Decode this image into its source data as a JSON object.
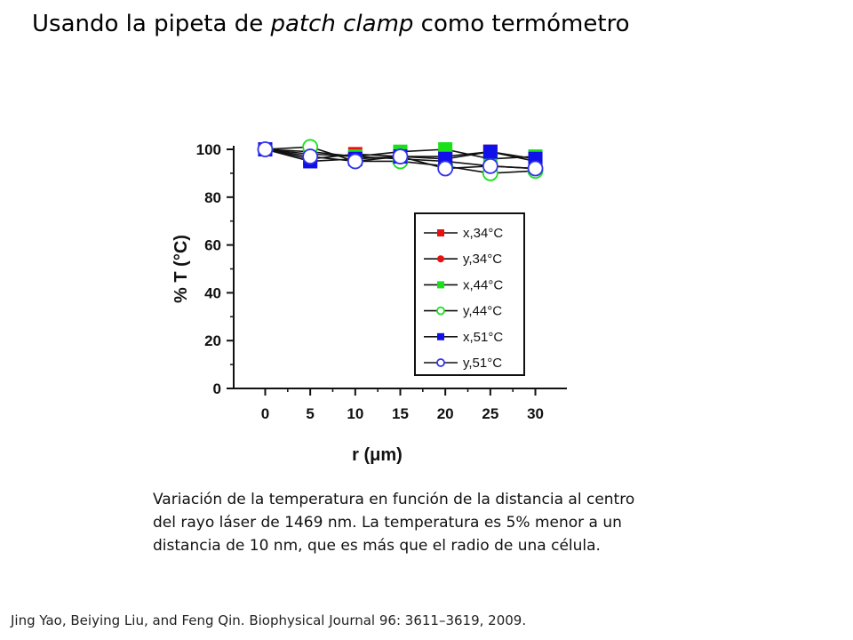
{
  "slide": {
    "title_part1": "Usando la pipeta de ",
    "title_italic": "patch clamp",
    "title_part2": " como termómetro",
    "caption": "Variación de la temperatura en función de la distancia al centro del rayo láser de 1469 nm. La temperatura es 5% menor a un distancia de 10 nm, que es más que el radio de una célula.",
    "citation": "Jing Yao, Beiying Liu, and Feng Qin. Biophysical Journal 96: 3611–3619, 2009."
  },
  "chart_data": {
    "type": "scatter",
    "xlabel": "r (μm)",
    "ylabel": "% T (°C)",
    "x": [
      0,
      5,
      10,
      15,
      20,
      25,
      30
    ],
    "xlim": [
      -3.5,
      33.5
    ],
    "ylim": [
      0,
      100
    ],
    "xticks": [
      "0",
      "5",
      "10",
      "15",
      "20",
      "25",
      "30"
    ],
    "yticks": [
      "0",
      "20",
      "40",
      "60",
      "80",
      "100"
    ],
    "grid": false,
    "legend_position": "right-middle",
    "series": [
      {
        "name": "x,34°C",
        "color": "#e81010",
        "marker": "square",
        "filled": true,
        "values": [
          100,
          96,
          98,
          97,
          97,
          99,
          95
        ]
      },
      {
        "name": "y,34°C",
        "color": "#e81010",
        "marker": "circle",
        "filled": true,
        "values": [
          100,
          98,
          97,
          96,
          95,
          93,
          92
        ]
      },
      {
        "name": "x,44°C",
        "color": "#19e019",
        "marker": "square",
        "filled": true,
        "values": [
          100,
          99,
          97,
          99,
          100,
          96,
          97
        ]
      },
      {
        "name": "y,44°C",
        "color": "#19e019",
        "marker": "circle",
        "filled": false,
        "values": [
          100,
          101,
          95,
          95,
          93,
          90,
          91
        ]
      },
      {
        "name": "x,51°C",
        "color": "#1010e8",
        "marker": "square",
        "filled": true,
        "values": [
          100,
          95,
          96,
          97,
          96,
          99,
          96
        ]
      },
      {
        "name": "y,51°C",
        "color": "#3333ee",
        "marker": "circle",
        "filled": false,
        "values": [
          100,
          97,
          95,
          97,
          92,
          93,
          92
        ]
      }
    ]
  }
}
